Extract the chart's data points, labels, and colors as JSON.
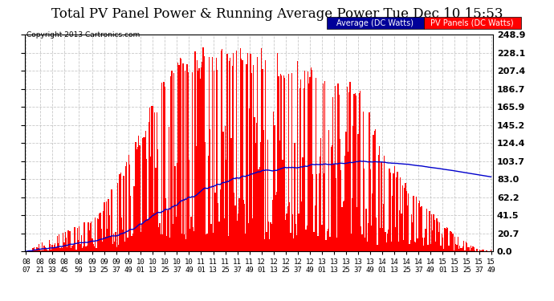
{
  "title": "Total PV Panel Power & Running Average Power Tue Dec 10 15:53",
  "copyright": "Copyright 2013 Cartronics.com",
  "legend_avg": "Average (DC Watts)",
  "legend_pv": "PV Panels (DC Watts)",
  "ylabel_right": [
    "0.0",
    "20.7",
    "41.5",
    "62.2",
    "83.0",
    "103.7",
    "124.4",
    "145.2",
    "165.9",
    "186.7",
    "207.4",
    "228.1",
    "248.9"
  ],
  "ymax": 248.9,
  "ymin": 0.0,
  "yticks": [
    0.0,
    20.7,
    41.5,
    62.2,
    83.0,
    103.7,
    124.4,
    145.2,
    165.9,
    186.7,
    207.4,
    228.1,
    248.9
  ],
  "background_color": "#ffffff",
  "bar_color": "#ff0000",
  "line_color": "#0000cc",
  "title_fontsize": 12,
  "grid_color": "#bbbbbb",
  "xlabel_fontsize": 6.5,
  "ylabel_fontsize": 8,
  "tick_labels": [
    "08:07",
    "08:21",
    "08:33",
    "08:45",
    "08:59",
    "09:13",
    "09:25",
    "09:37",
    "09:49",
    "10:01",
    "10:13",
    "10:25",
    "10:37",
    "10:49",
    "11:01",
    "11:13",
    "11:25",
    "11:37",
    "11:49",
    "12:01",
    "12:13",
    "12:25",
    "12:37",
    "12:49",
    "13:01",
    "13:13",
    "13:25",
    "13:37",
    "13:49",
    "14:01",
    "14:13",
    "14:25",
    "14:37",
    "14:49",
    "15:01",
    "15:13",
    "15:25",
    "15:37",
    "15:49"
  ]
}
